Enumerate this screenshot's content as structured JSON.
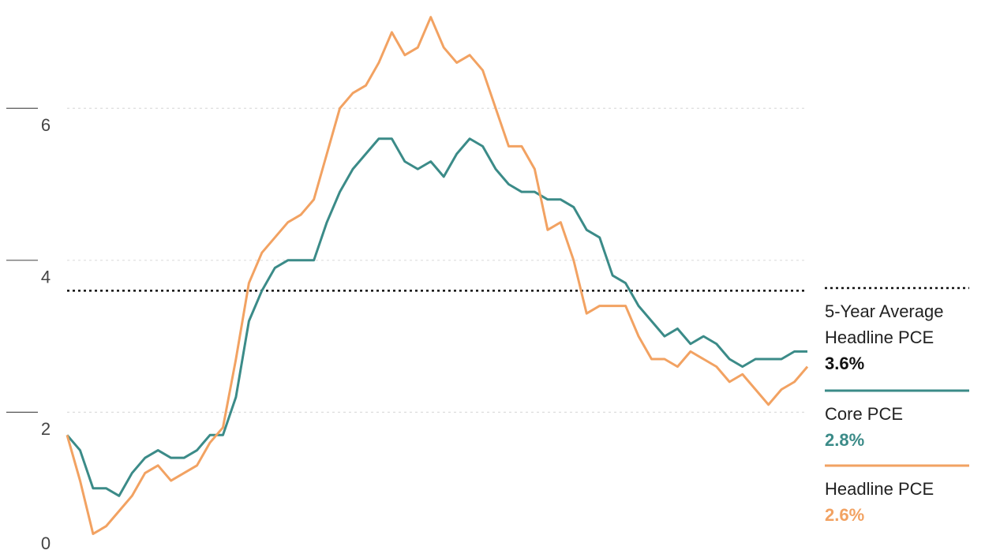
{
  "chart_data": {
    "type": "line",
    "ylim": [
      0,
      7.4
    ],
    "yticks": [
      0,
      2,
      4,
      6
    ],
    "grid": true,
    "series": [
      {
        "name": "Core PCE",
        "color": "#3b8b88",
        "value_label": "2.8%",
        "values": [
          1.7,
          1.5,
          1.0,
          1.0,
          0.9,
          1.2,
          1.4,
          1.5,
          1.4,
          1.4,
          1.5,
          1.7,
          1.7,
          2.2,
          3.2,
          3.6,
          3.9,
          4.0,
          4.0,
          4.0,
          4.5,
          4.9,
          5.2,
          5.4,
          5.6,
          5.6,
          5.3,
          5.2,
          5.3,
          5.1,
          5.4,
          5.6,
          5.5,
          5.2,
          5.0,
          4.9,
          4.9,
          4.8,
          4.8,
          4.7,
          4.4,
          4.3,
          3.8,
          3.7,
          3.4,
          3.2,
          3.0,
          3.1,
          2.9,
          3.0,
          2.9,
          2.7,
          2.6,
          2.7,
          2.7,
          2.7,
          2.8,
          2.8
        ]
      },
      {
        "name": "Headline PCE",
        "color": "#f2a262",
        "value_label": "2.6%",
        "values": [
          1.7,
          1.1,
          0.4,
          0.5,
          0.7,
          0.9,
          1.2,
          1.3,
          1.1,
          1.2,
          1.3,
          1.6,
          1.8,
          2.7,
          3.7,
          4.1,
          4.3,
          4.5,
          4.6,
          4.8,
          5.4,
          6.0,
          6.2,
          6.3,
          6.6,
          7.0,
          6.7,
          6.8,
          7.2,
          6.8,
          6.6,
          6.7,
          6.5,
          6.0,
          5.5,
          5.5,
          5.2,
          4.4,
          4.5,
          4.0,
          3.3,
          3.4,
          3.4,
          3.4,
          3.0,
          2.7,
          2.7,
          2.6,
          2.8,
          2.7,
          2.6,
          2.4,
          2.5,
          2.3,
          2.1,
          2.3,
          2.4,
          2.6
        ]
      }
    ],
    "reference_line": {
      "name": "5-Year Average Headline PCE",
      "value": 3.6,
      "label": "3.6%",
      "color": "#111111"
    }
  }
}
